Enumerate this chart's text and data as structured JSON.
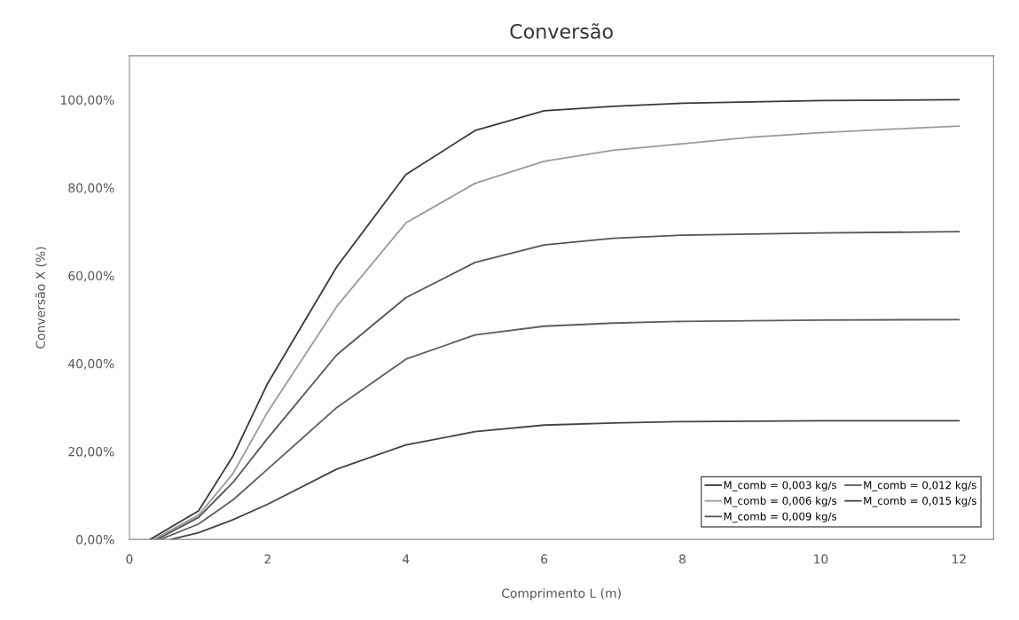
{
  "chart_data": {
    "type": "line",
    "title": "Conversão",
    "xlabel": "Comprimento L (m)",
    "ylabel": "Conversão X (%)",
    "xlim": [
      0,
      12.5
    ],
    "xticks": [
      0,
      2,
      4,
      6,
      8,
      10,
      12
    ],
    "ylim": [
      0,
      110
    ],
    "yticks": [
      {
        "value": 0,
        "label": "0,00%"
      },
      {
        "value": 20,
        "label": "20,00%"
      },
      {
        "value": 40,
        "label": "40,00%"
      },
      {
        "value": 60,
        "label": "60,00%"
      },
      {
        "value": 80,
        "label": "80,00%"
      },
      {
        "value": 100,
        "label": "100,00%"
      }
    ],
    "grid": false,
    "legend": "bottom right",
    "marker": "none",
    "line_style": "solid",
    "series": [
      {
        "name": "M_comb = 0,003 kg/s",
        "color": "#3a3a3a",
        "x": [
          0.3,
          1,
          1.5,
          2,
          3,
          4,
          5,
          6,
          7,
          8,
          10,
          12
        ],
        "values": [
          0,
          6.5,
          19,
          35.5,
          62,
          83,
          93,
          97.5,
          98.5,
          99.2,
          99.8,
          100
        ]
      },
      {
        "name": "M_comb = 0,006 kg/s",
        "color": "#9a9a9a",
        "x": [
          0.35,
          1,
          1.5,
          2,
          3,
          4,
          5,
          6,
          7,
          8,
          9,
          10,
          11,
          12
        ],
        "values": [
          0,
          5.5,
          15,
          29,
          53,
          72,
          81,
          86,
          88.5,
          90,
          91.5,
          92.5,
          93.3,
          94
        ]
      },
      {
        "name": "M_comb = 0,009 kg/s",
        "color": "#555555",
        "x": [
          0.4,
          1,
          1.5,
          2,
          3,
          4,
          5,
          6,
          7,
          8,
          10,
          12
        ],
        "values": [
          0,
          5,
          13,
          23,
          42,
          55,
          63,
          67,
          68.5,
          69.2,
          69.7,
          70
        ]
      },
      {
        "name": "M_comb = 0,012 kg/s",
        "color": "#5e5e5e",
        "x": [
          0.45,
          1,
          1.5,
          2,
          3,
          4,
          5,
          6,
          7,
          8,
          10,
          12
        ],
        "values": [
          0,
          3.5,
          9,
          16,
          30,
          41,
          46.5,
          48.5,
          49.2,
          49.6,
          49.9,
          50
        ]
      },
      {
        "name": "M_comb = 0,015 kg/s",
        "color": "#444444",
        "x": [
          0.6,
          1,
          1.5,
          2,
          3,
          4,
          5,
          6,
          7,
          8,
          10,
          12
        ],
        "values": [
          0,
          1.5,
          4.5,
          8,
          16,
          21.5,
          24.5,
          26,
          26.5,
          26.8,
          27,
          27
        ]
      }
    ]
  }
}
